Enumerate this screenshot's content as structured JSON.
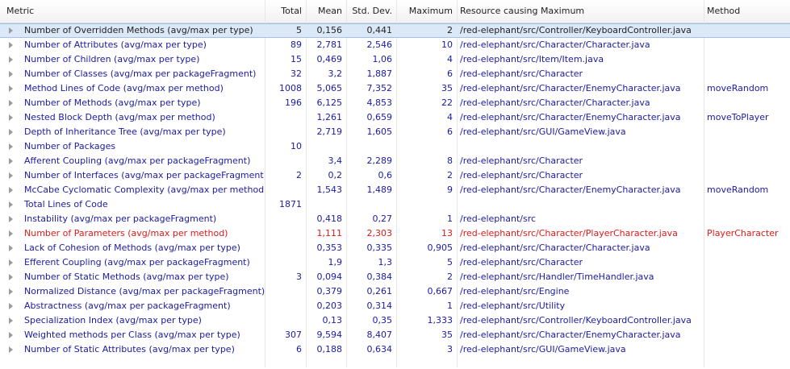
{
  "columns": {
    "metric": "Metric",
    "total": "Total",
    "mean": "Mean",
    "std": "Std. Dev.",
    "maximum": "Maximum",
    "resource": "Resource causing Maximum",
    "method": "Method"
  },
  "rows": [
    {
      "metric": "Number of Overridden Methods (avg/max per type)",
      "total": "5",
      "mean": "0,156",
      "std": "0,441",
      "maximum": "2",
      "resource": "/red-elephant/src/Controller/KeyboardController.java",
      "method": "",
      "selected": true
    },
    {
      "metric": "Number of Attributes (avg/max per type)",
      "total": "89",
      "mean": "2,781",
      "std": "2,546",
      "maximum": "10",
      "resource": "/red-elephant/src/Character/Character.java",
      "method": ""
    },
    {
      "metric": "Number of Children (avg/max per type)",
      "total": "15",
      "mean": "0,469",
      "std": "1,06",
      "maximum": "4",
      "resource": "/red-elephant/src/Item/Item.java",
      "method": ""
    },
    {
      "metric": "Number of Classes (avg/max per packageFragment)",
      "total": "32",
      "mean": "3,2",
      "std": "1,887",
      "maximum": "6",
      "resource": "/red-elephant/src/Character",
      "method": ""
    },
    {
      "metric": "Method Lines of Code (avg/max per method)",
      "total": "1008",
      "mean": "5,065",
      "std": "7,352",
      "maximum": "35",
      "resource": "/red-elephant/src/Character/EnemyCharacter.java",
      "method": "moveRandom"
    },
    {
      "metric": "Number of Methods (avg/max per type)",
      "total": "196",
      "mean": "6,125",
      "std": "4,853",
      "maximum": "22",
      "resource": "/red-elephant/src/Character/Character.java",
      "method": ""
    },
    {
      "metric": "Nested Block Depth (avg/max per method)",
      "total": "",
      "mean": "1,261",
      "std": "0,659",
      "maximum": "4",
      "resource": "/red-elephant/src/Character/EnemyCharacter.java",
      "method": "moveToPlayer"
    },
    {
      "metric": "Depth of Inheritance Tree (avg/max per type)",
      "total": "",
      "mean": "2,719",
      "std": "1,605",
      "maximum": "6",
      "resource": "/red-elephant/src/GUI/GameView.java",
      "method": ""
    },
    {
      "metric": "Number of Packages",
      "total": "10",
      "mean": "",
      "std": "",
      "maximum": "",
      "resource": "",
      "method": ""
    },
    {
      "metric": "Afferent Coupling (avg/max per packageFragment)",
      "total": "",
      "mean": "3,4",
      "std": "2,289",
      "maximum": "8",
      "resource": "/red-elephant/src/Character",
      "method": ""
    },
    {
      "metric": "Number of Interfaces (avg/max per packageFragment)",
      "total": "2",
      "mean": "0,2",
      "std": "0,6",
      "maximum": "2",
      "resource": "/red-elephant/src/Character",
      "method": ""
    },
    {
      "metric": "McCabe Cyclomatic Complexity (avg/max per method)",
      "total": "",
      "mean": "1,543",
      "std": "1,489",
      "maximum": "9",
      "resource": "/red-elephant/src/Character/EnemyCharacter.java",
      "method": "moveRandom"
    },
    {
      "metric": "Total Lines of Code",
      "total": "1871",
      "mean": "",
      "std": "",
      "maximum": "",
      "resource": "",
      "method": ""
    },
    {
      "metric": "Instability (avg/max per packageFragment)",
      "total": "",
      "mean": "0,418",
      "std": "0,27",
      "maximum": "1",
      "resource": "/red-elephant/src",
      "method": ""
    },
    {
      "metric": "Number of Parameters (avg/max per method)",
      "total": "",
      "mean": "1,111",
      "std": "2,303",
      "maximum": "13",
      "resource": "/red-elephant/src/Character/PlayerCharacter.java",
      "method": "PlayerCharacter",
      "red": true
    },
    {
      "metric": "Lack of Cohesion of Methods (avg/max per type)",
      "total": "",
      "mean": "0,353",
      "std": "0,335",
      "maximum": "0,905",
      "resource": "/red-elephant/src/Character/Character.java",
      "method": ""
    },
    {
      "metric": "Efferent Coupling (avg/max per packageFragment)",
      "total": "",
      "mean": "1,9",
      "std": "1,3",
      "maximum": "5",
      "resource": "/red-elephant/src/Character",
      "method": ""
    },
    {
      "metric": "Number of Static Methods (avg/max per type)",
      "total": "3",
      "mean": "0,094",
      "std": "0,384",
      "maximum": "2",
      "resource": "/red-elephant/src/Handler/TimeHandler.java",
      "method": ""
    },
    {
      "metric": "Normalized Distance (avg/max per packageFragment)",
      "total": "",
      "mean": "0,379",
      "std": "0,261",
      "maximum": "0,667",
      "resource": "/red-elephant/src/Engine",
      "method": ""
    },
    {
      "metric": "Abstractness (avg/max per packageFragment)",
      "total": "",
      "mean": "0,203",
      "std": "0,314",
      "maximum": "1",
      "resource": "/red-elephant/src/Utility",
      "method": ""
    },
    {
      "metric": "Specialization Index (avg/max per type)",
      "total": "",
      "mean": "0,13",
      "std": "0,35",
      "maximum": "1,333",
      "resource": "/red-elephant/src/Controller/KeyboardController.java",
      "method": ""
    },
    {
      "metric": "Weighted methods per Class (avg/max per type)",
      "total": "307",
      "mean": "9,594",
      "std": "8,407",
      "maximum": "35",
      "resource": "/red-elephant/src/Character/EnemyCharacter.java",
      "method": ""
    },
    {
      "metric": "Number of Static Attributes (avg/max per type)",
      "total": "6",
      "mean": "0,188",
      "std": "0,634",
      "maximum": "3",
      "resource": "/red-elephant/src/GUI/GameView.java",
      "method": ""
    }
  ],
  "colors": {
    "link_text": "#1a1aa6",
    "warning_text": "#e01818",
    "selection": "#dbe8f8"
  }
}
